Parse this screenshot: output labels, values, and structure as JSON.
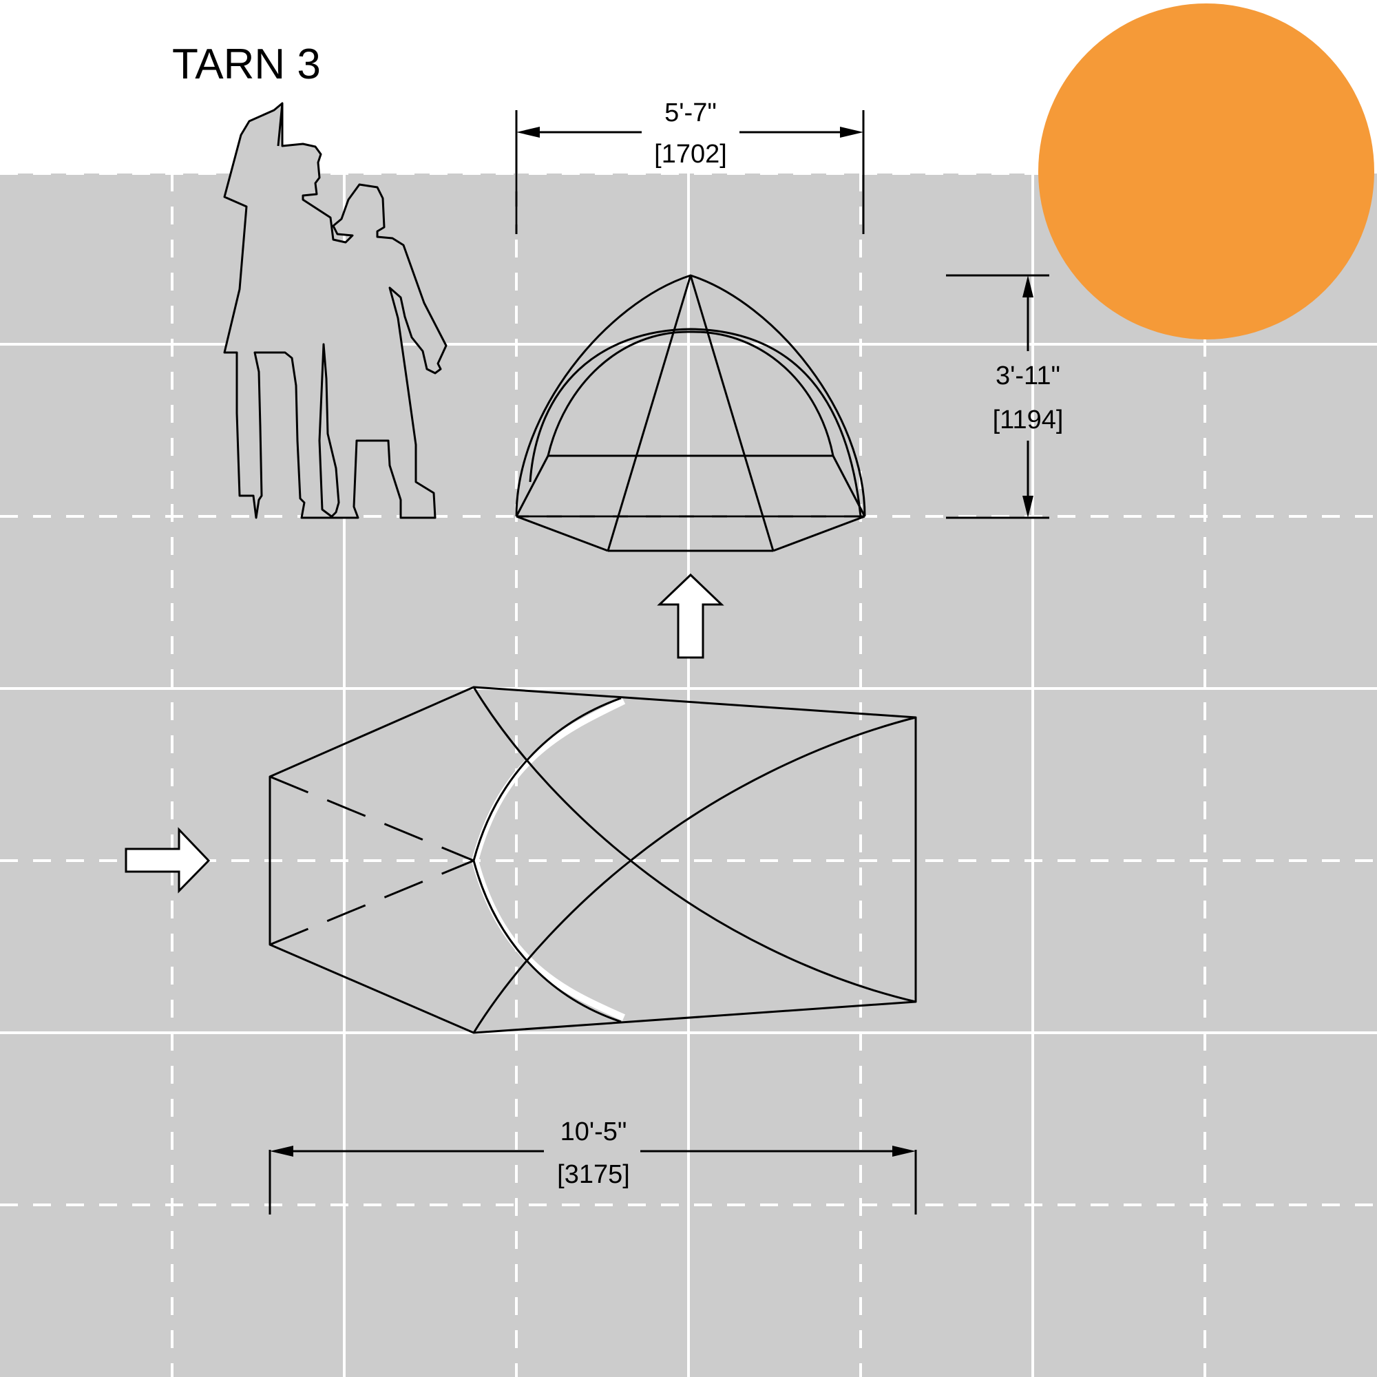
{
  "title": "TARN 3",
  "dimensions": {
    "width_imperial": "5'-7\"",
    "width_metric": "[1702]",
    "height_imperial": "3'-11\"",
    "height_metric": "[1194]",
    "length_imperial": "10'-5\"",
    "length_metric": "[3175]"
  },
  "colors": {
    "grid_fill": "#cccccc",
    "grid_line": "#ffffff",
    "line": "#000000",
    "accent_circle": "#f59a38"
  },
  "icons": {
    "view_arrow_front": "arrow-up-outline",
    "view_arrow_side": "arrow-right-outline"
  }
}
